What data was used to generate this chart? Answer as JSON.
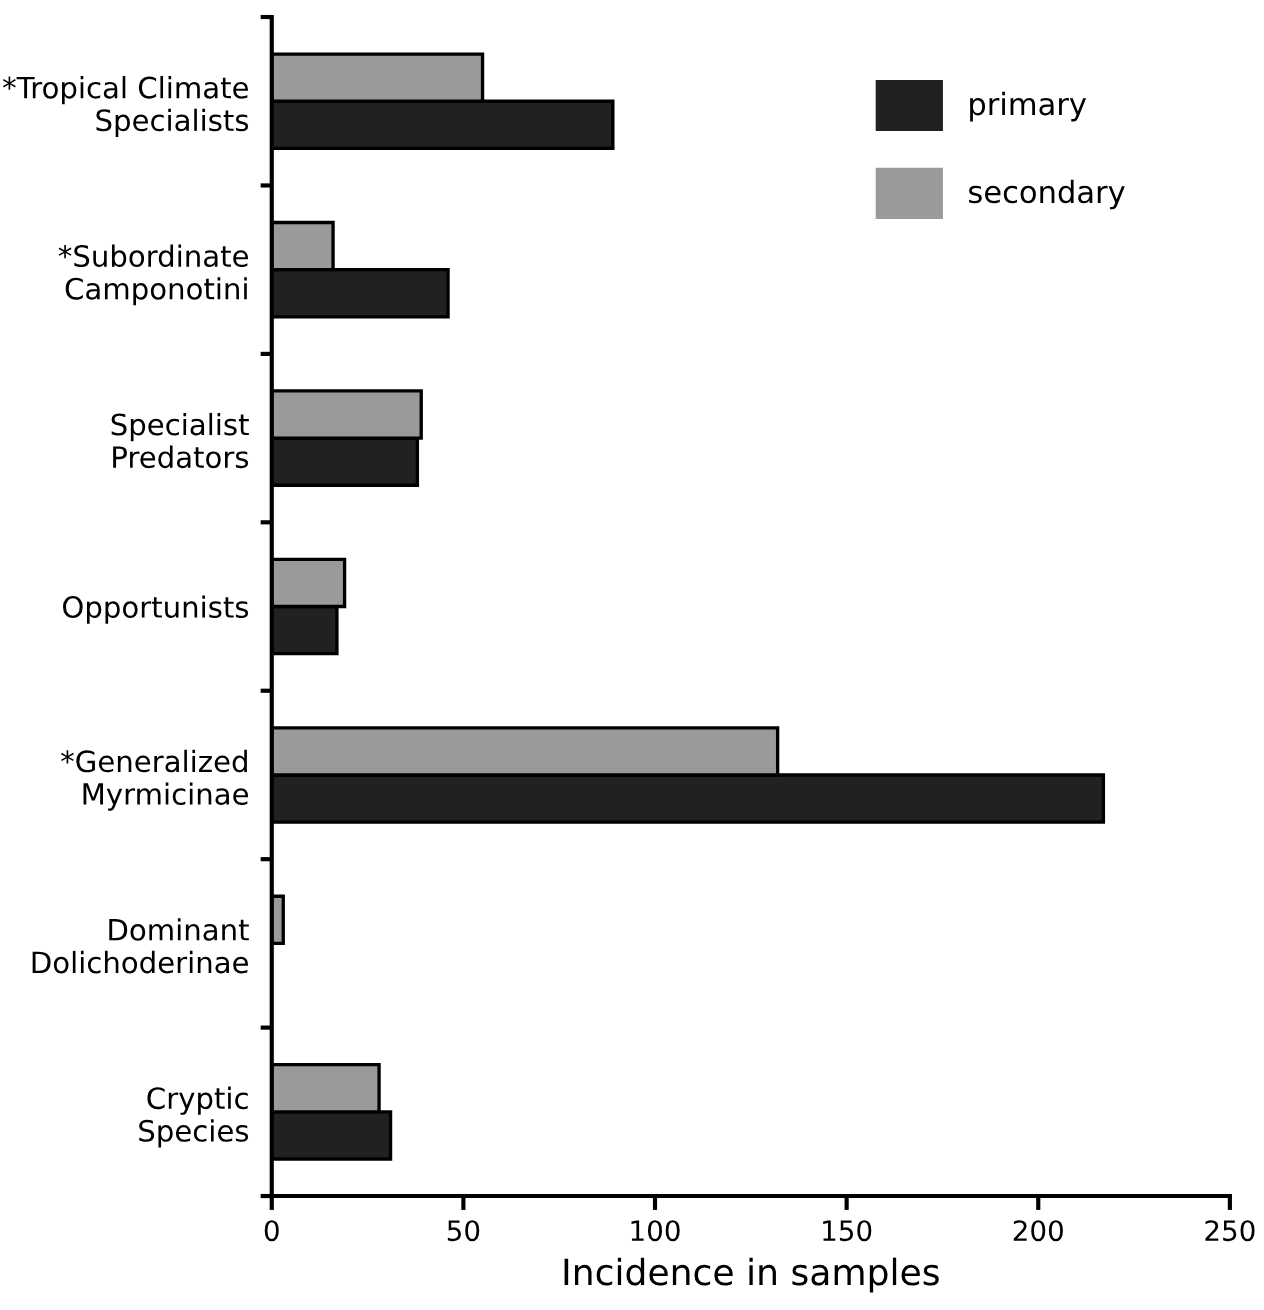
{
  "chart_data": {
    "type": "bar",
    "orientation": "horizontal",
    "xlabel": "Incidence in samples",
    "categories": [
      "*Tropical Climate\nSpecialists",
      "*Subordinate\nCamponotini",
      "Specialist\nPredators",
      "Opportunists",
      "*Generalized\nMyrmicinae",
      "Dominant\nDolichoderinae",
      "Cryptic\nSpecies"
    ],
    "series": [
      {
        "name": "primary",
        "color": "#212121",
        "values": [
          89,
          46,
          38,
          17,
          217,
          0,
          31
        ]
      },
      {
        "name": "secondary",
        "color": "#9a9a9a",
        "values": [
          55,
          16,
          39,
          19,
          132,
          3,
          28
        ]
      }
    ],
    "xlim": [
      0,
      250
    ],
    "xticks": [
      0,
      50,
      100,
      150,
      200,
      250
    ],
    "grid": false,
    "legend": "top right"
  }
}
